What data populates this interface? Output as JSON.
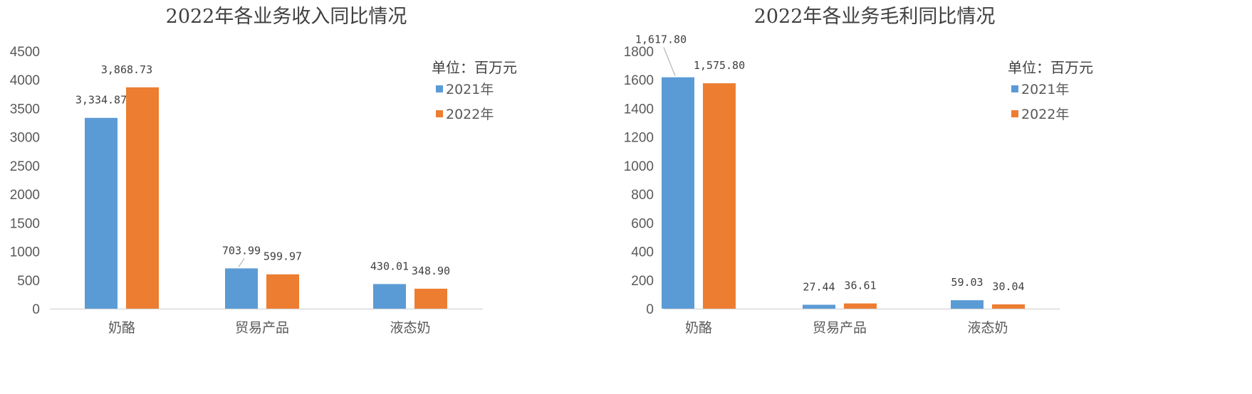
{
  "chart_data": [
    {
      "type": "bar",
      "title": "2022年各业务收入同比情况",
      "unit_label": "单位：百万元",
      "categories": [
        "奶酪",
        "贸易产品",
        "液态奶"
      ],
      "series": [
        {
          "name": "2021年",
          "values": [
            3334.87,
            703.99,
            430.01
          ],
          "labels": [
            "3,334.87",
            "703.99",
            "430.01"
          ],
          "color": "#5B9BD5"
        },
        {
          "name": "2022年",
          "values": [
            3868.73,
            599.97,
            348.9
          ],
          "labels": [
            "3,868.73",
            "599.97",
            "348.90"
          ],
          "color": "#ED7D31"
        }
      ],
      "yticks": [
        "0",
        "500",
        "1000",
        "1500",
        "2000",
        "2500",
        "3000",
        "3500",
        "4000",
        "4500"
      ],
      "ylim": [
        0,
        4500
      ],
      "legend": "top-right",
      "grid": false
    },
    {
      "type": "bar",
      "title": "2022年各业务毛利同比情况",
      "unit_label": "单位：百万元",
      "categories": [
        "奶酪",
        "贸易产品",
        "液态奶"
      ],
      "series": [
        {
          "name": "2021年",
          "values": [
            1617.8,
            27.44,
            59.03
          ],
          "labels": [
            "1,617.80",
            "27.44",
            "59.03"
          ],
          "color": "#5B9BD5"
        },
        {
          "name": "2022年",
          "values": [
            1575.8,
            36.61,
            30.04
          ],
          "labels": [
            "1,575.80",
            "36.61",
            "30.04"
          ],
          "color": "#ED7D31"
        }
      ],
      "yticks": [
        "0",
        "200",
        "400",
        "600",
        "800",
        "1000",
        "1200",
        "1400",
        "1600",
        "1800"
      ],
      "ylim": [
        0,
        1800
      ],
      "legend": "top-right",
      "grid": false
    }
  ]
}
